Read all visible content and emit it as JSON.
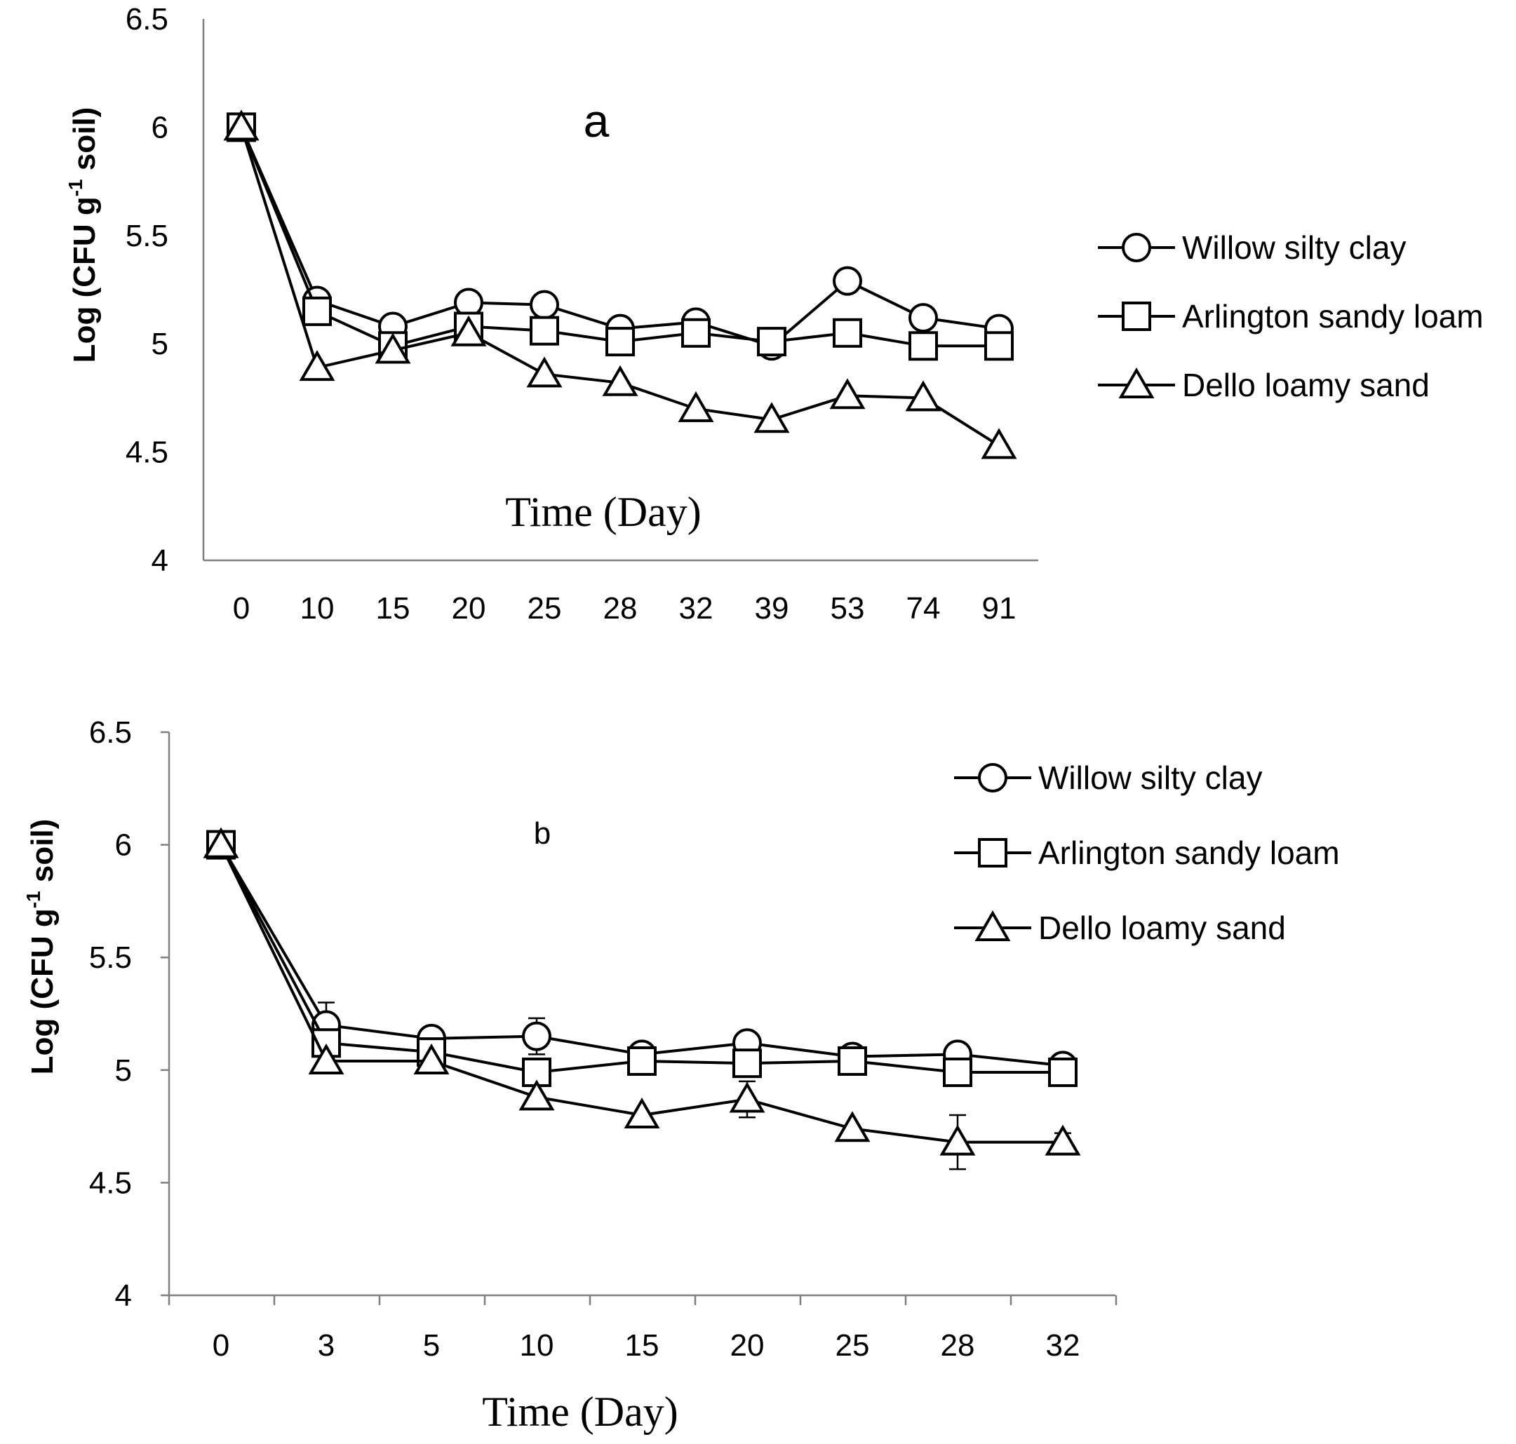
{
  "chart_data": [
    {
      "type": "line",
      "panel_label": "a",
      "xlabel": "Time (Day)",
      "ylabel_main": "Log (CFU g",
      "ylabel_sup": "-1",
      "ylabel_tail": " soil)",
      "categories": [
        "0",
        "10",
        "15",
        "20",
        "25",
        "28",
        "32",
        "39",
        "53",
        "74",
        "91"
      ],
      "ylim": [
        4,
        6.5
      ],
      "yticks": [
        "4",
        "4.5",
        "5",
        "5.5",
        "6",
        "6.5"
      ],
      "grid": false,
      "legend_position": "right",
      "series": [
        {
          "name": "Willow silty clay",
          "marker": "circle",
          "values": [
            6.0,
            5.2,
            5.08,
            5.19,
            5.18,
            5.07,
            5.1,
            4.99,
            5.29,
            5.12,
            5.07
          ]
        },
        {
          "name": "Arlington sandy loam",
          "marker": "square",
          "values": [
            6.0,
            5.15,
            4.99,
            5.08,
            5.06,
            5.01,
            5.05,
            5.01,
            5.05,
            4.99,
            4.99
          ]
        },
        {
          "name": "Dello loamy sand",
          "marker": "triangle",
          "values": [
            6.0,
            4.89,
            4.97,
            5.05,
            4.86,
            4.82,
            4.7,
            4.65,
            4.76,
            4.75,
            4.53
          ]
        }
      ]
    },
    {
      "type": "line",
      "panel_label": "b",
      "xlabel": "Time (Day)",
      "ylabel_main": "Log (CFU g",
      "ylabel_sup": "-1",
      "ylabel_tail": " soil)",
      "categories": [
        "0",
        "3",
        "5",
        "10",
        "15",
        "20",
        "25",
        "28",
        "32"
      ],
      "ylim": [
        4,
        6.5
      ],
      "yticks": [
        "4",
        "4.5",
        "5",
        "5.5",
        "6",
        "6.5"
      ],
      "grid": false,
      "legend_position": "top-right",
      "series": [
        {
          "name": "Willow silty clay",
          "marker": "circle",
          "values": [
            6.0,
            5.2,
            5.14,
            5.15,
            5.07,
            5.12,
            5.06,
            5.07,
            5.02
          ],
          "errors": [
            0,
            0.1,
            0,
            0.08,
            0,
            0,
            0,
            0,
            0
          ]
        },
        {
          "name": "Arlington sandy loam",
          "marker": "square",
          "values": [
            6.0,
            5.12,
            5.08,
            4.99,
            5.04,
            5.03,
            5.04,
            4.99,
            4.99
          ],
          "errors": [
            0,
            0,
            0,
            0,
            0,
            0,
            0,
            0,
            0
          ]
        },
        {
          "name": "Dello loamy sand",
          "marker": "triangle",
          "values": [
            6.0,
            5.04,
            5.04,
            4.88,
            4.8,
            4.87,
            4.74,
            4.68,
            4.68
          ],
          "errors": [
            0,
            0,
            0,
            0,
            0,
            0.08,
            0,
            0.12,
            0.04
          ]
        }
      ]
    }
  ]
}
